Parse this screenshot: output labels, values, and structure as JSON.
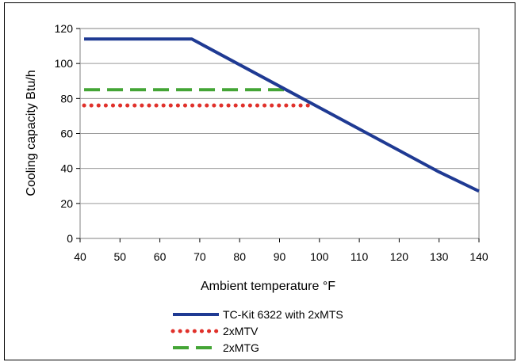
{
  "chart_data": {
    "type": "line",
    "title": "",
    "xlabel": "Ambient temperature °F",
    "ylabel": "Cooling capacity Btu/h",
    "xlim": [
      40,
      140
    ],
    "ylim": [
      0,
      120
    ],
    "x_ticks": [
      40,
      50,
      60,
      70,
      80,
      90,
      100,
      110,
      120,
      130,
      140
    ],
    "y_ticks": [
      0,
      20,
      40,
      60,
      80,
      100,
      120
    ],
    "grid": "horizontal",
    "legend_position": "bottom",
    "plot_background": "#ffffff",
    "series": [
      {
        "name": "TC-Kit 6322 with 2xMTS",
        "color": "#1f3a93",
        "style": "solid",
        "points": [
          [
            41,
            114
          ],
          [
            68,
            114
          ],
          [
            130,
            38
          ],
          [
            140,
            27
          ]
        ]
      },
      {
        "name": "2xMTV",
        "color": "#e0312b",
        "style": "dotted",
        "points": [
          [
            41,
            76
          ],
          [
            98,
            76
          ]
        ]
      },
      {
        "name": "2xMTG",
        "color": "#44a536",
        "style": "dashed",
        "points": [
          [
            41,
            85
          ],
          [
            92,
            85
          ]
        ]
      }
    ]
  }
}
